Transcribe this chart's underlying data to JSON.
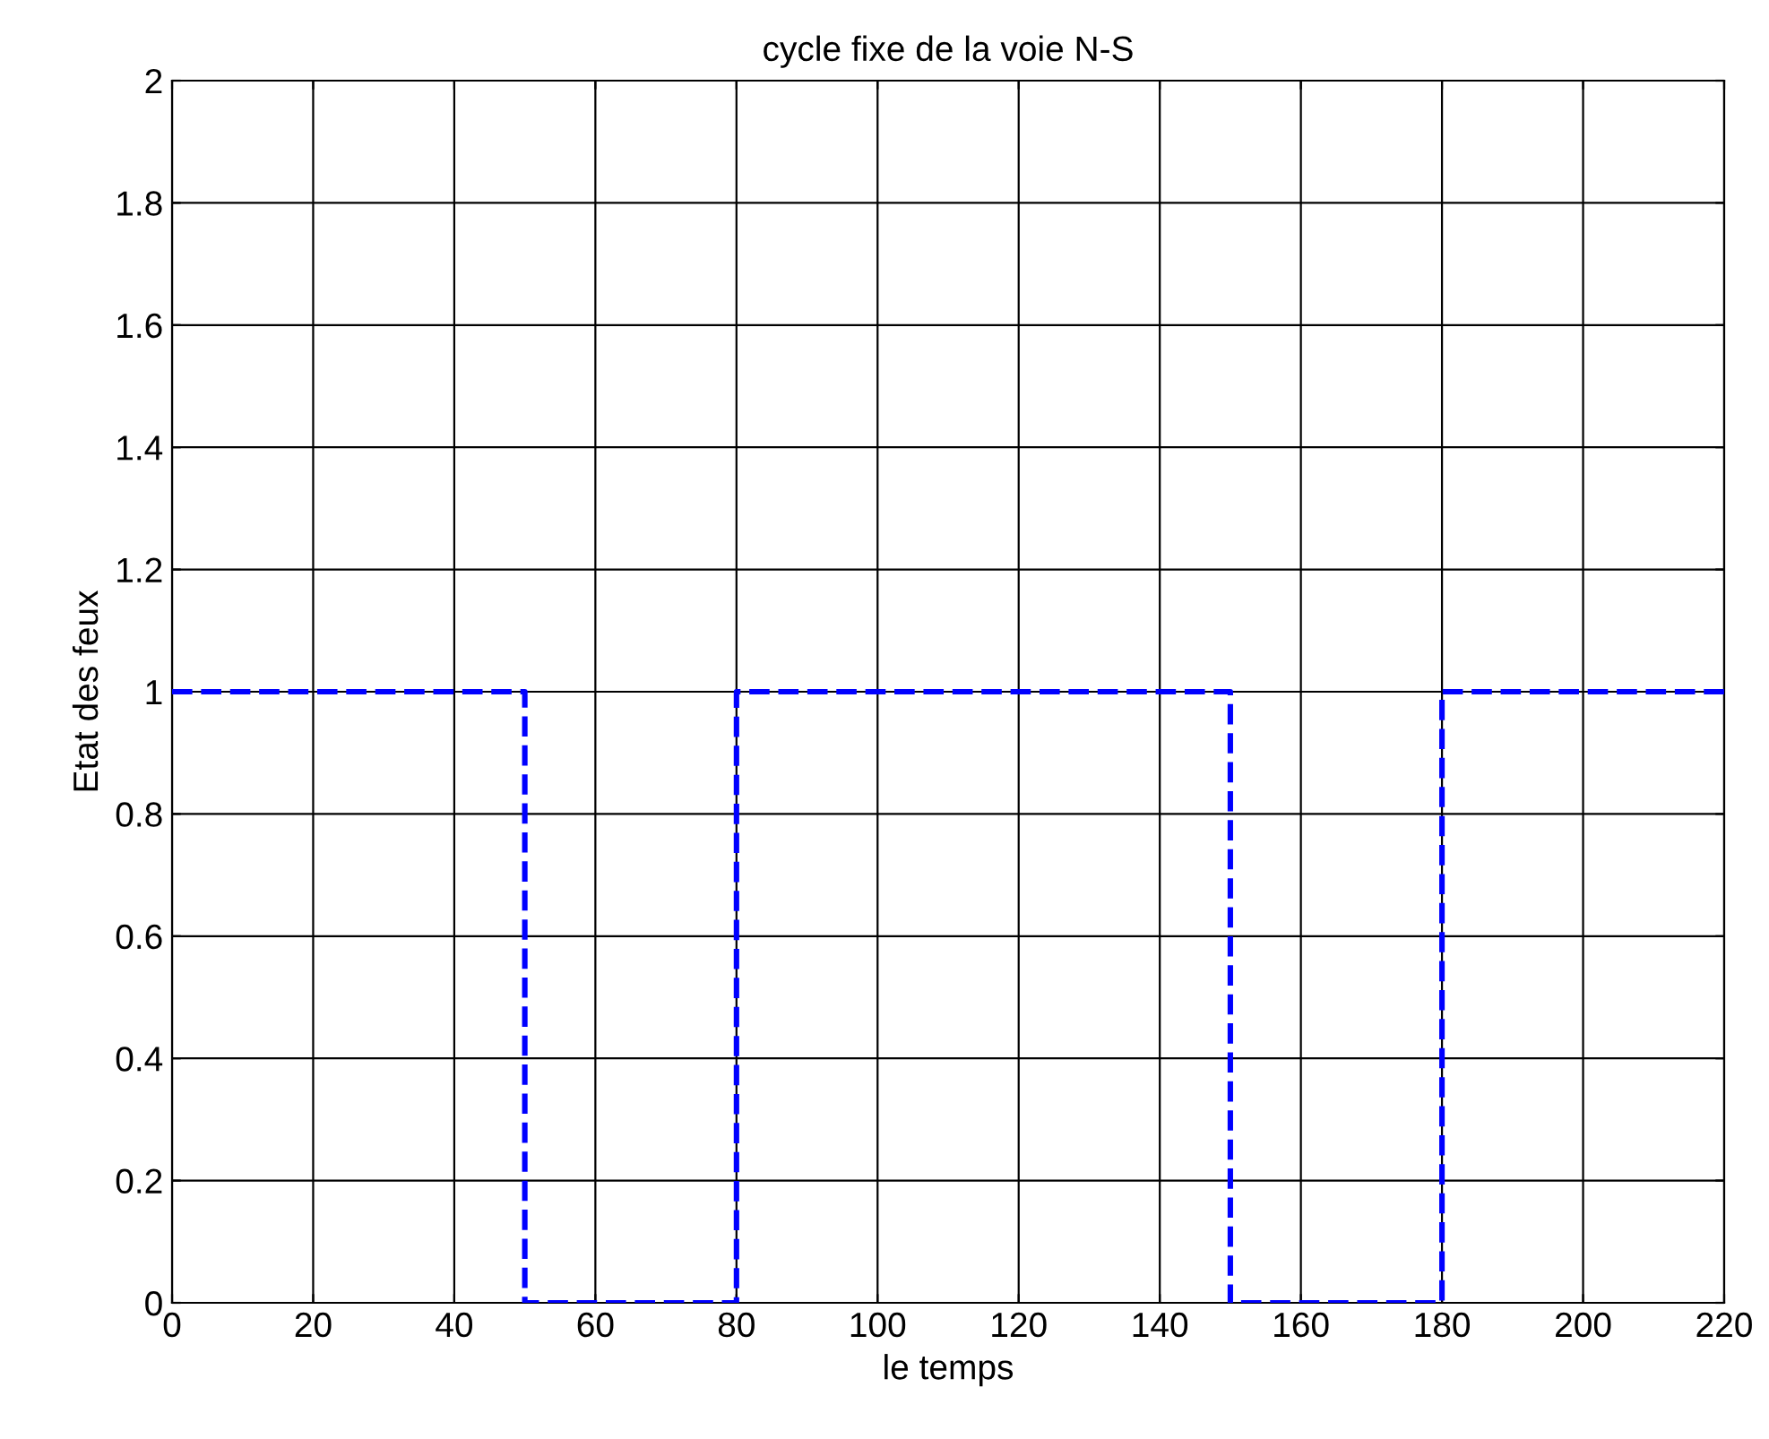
{
  "chart_data": {
    "type": "line",
    "title": "cycle fixe de la voie N-S",
    "xlabel": "le temps",
    "ylabel": "Etat des feux",
    "series": [
      {
        "color": "#0000ff",
        "x": [
          0,
          50,
          50,
          80,
          80,
          150,
          150,
          180,
          180,
          220
        ],
        "values": [
          1,
          1,
          0,
          0,
          1,
          1,
          0,
          0,
          1,
          1
        ]
      }
    ],
    "xlim": [
      0,
      220
    ],
    "xticks": [
      0,
      20,
      40,
      60,
      80,
      100,
      120,
      140,
      160,
      180,
      200,
      220
    ],
    "ylim": [
      0,
      2
    ],
    "yticks": [
      0,
      0.2,
      0.4,
      0.6,
      0.8,
      1,
      1.2,
      1.4,
      1.6,
      1.8,
      2
    ],
    "grid": true,
    "line_style": "dashed",
    "marker": "none"
  }
}
